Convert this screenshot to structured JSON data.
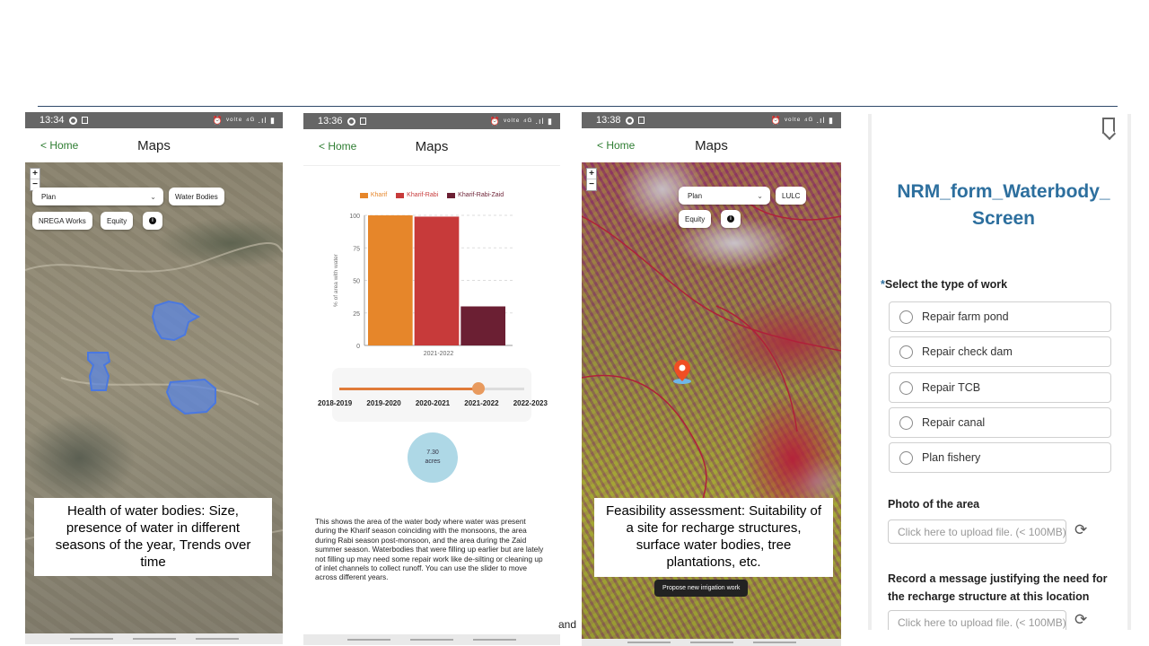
{
  "screens": [
    {
      "status_time": "13:34",
      "status_icons": "⏰ ᵛᵒˡᵗᵉ ⁴ᴳ .ıl ▮",
      "home_label": "< Home",
      "title": "Maps",
      "zoom_in": "+",
      "zoom_out": "−",
      "select_value": "Plan",
      "chips": [
        "Water Bodies",
        "NREGA Works",
        "Equity"
      ],
      "info_icon": "info-icon",
      "caption": "Health of water bodies: Size, presence of water in different seasons of the year, Trends over time"
    },
    {
      "status_time": "13:36",
      "status_icons": "⏰ ᵛᵒˡᵗᵉ ⁴ᴳ .ıl ▮",
      "home_label": "< Home",
      "title": "Maps",
      "slider_years": [
        "2018-2019",
        "2019-2020",
        "2020-2021",
        "2021-2022",
        "2022-2023"
      ],
      "slider_selected_index": 3,
      "area_value": "7.30",
      "area_unit": "acres",
      "description": "This shows the area of the water body where water was present during the Kharif season coinciding with the monsoons, the area during Rabi season post-monsoon, and the area during the Zaid summer season. Waterbodies that were filling up earlier but are lately not filling up may need some repair work like de-silting or cleaning up of inlet channels to collect runoff. You can use the slider to move across different years."
    },
    {
      "status_time": "13:38",
      "status_icons": "⏰ ᵛᵒˡᵗᵉ ⁴ᴳ .ıl ▮",
      "home_label": "< Home",
      "title": "Maps",
      "zoom_in": "+",
      "zoom_out": "−",
      "select_value": "Plan",
      "chips": [
        "LULC",
        "Equity"
      ],
      "caption": "Feasibility assessment: Suitability of a site for recharge structures, surface water bodies, tree plantations, etc.",
      "propose_button": "Propose new irrigation work"
    }
  ],
  "chart_data": {
    "type": "bar",
    "categories": [
      "2021-2022"
    ],
    "series": [
      {
        "name": "Kharif",
        "values": [
          100
        ],
        "color": "#e6862a"
      },
      {
        "name": "Kharif-Rabi",
        "values": [
          99
        ],
        "color": "#c73a3a"
      },
      {
        "name": "Kharif-Rabi-Zaid",
        "values": [
          30
        ],
        "color": "#6b1f33"
      }
    ],
    "ylabel": "% of area with water",
    "ylim": [
      0,
      100
    ],
    "yticks": [
      0,
      25,
      50,
      75,
      100
    ],
    "grid": true,
    "legend_position": "top"
  },
  "form": {
    "title": "NRM_form_Waterbody_ Screen",
    "required_mark": "*",
    "question1": "Select the type of work",
    "options": [
      "Repair farm pond",
      "Repair check dam",
      "Repair TCB",
      "Repair canal",
      "Plan fishery"
    ],
    "photo_label": "Photo of the area",
    "upload_placeholder": "Click here to upload file. (< 100MB)",
    "message_label": "Record a message justifying the need for the recharge structure at this location",
    "upload_placeholder2": "Click here to upload file. (< 100MB)"
  },
  "stray_text": "and"
}
